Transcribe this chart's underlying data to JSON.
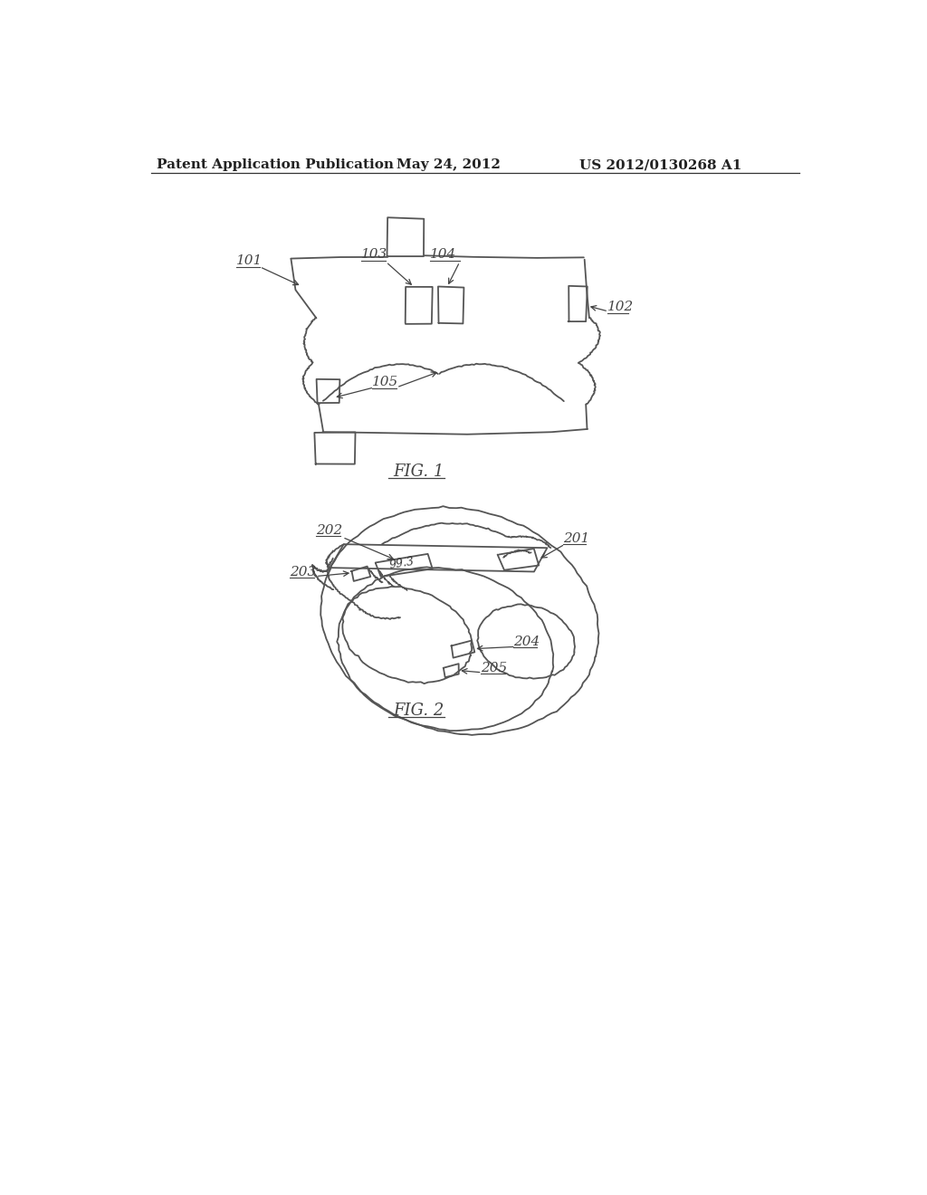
{
  "background_color": "#ffffff",
  "header_left": "Patent Application Publication",
  "header_center": "May 24, 2012",
  "header_right": "US 2012/0130268 A1",
  "header_fontsize": 11,
  "fig1_label": "FIG. 1",
  "fig2_label": "FIG. 2",
  "line_color": "#555555",
  "label_color": "#444444",
  "label_fontsize": 11,
  "fig_label_fontsize": 13
}
